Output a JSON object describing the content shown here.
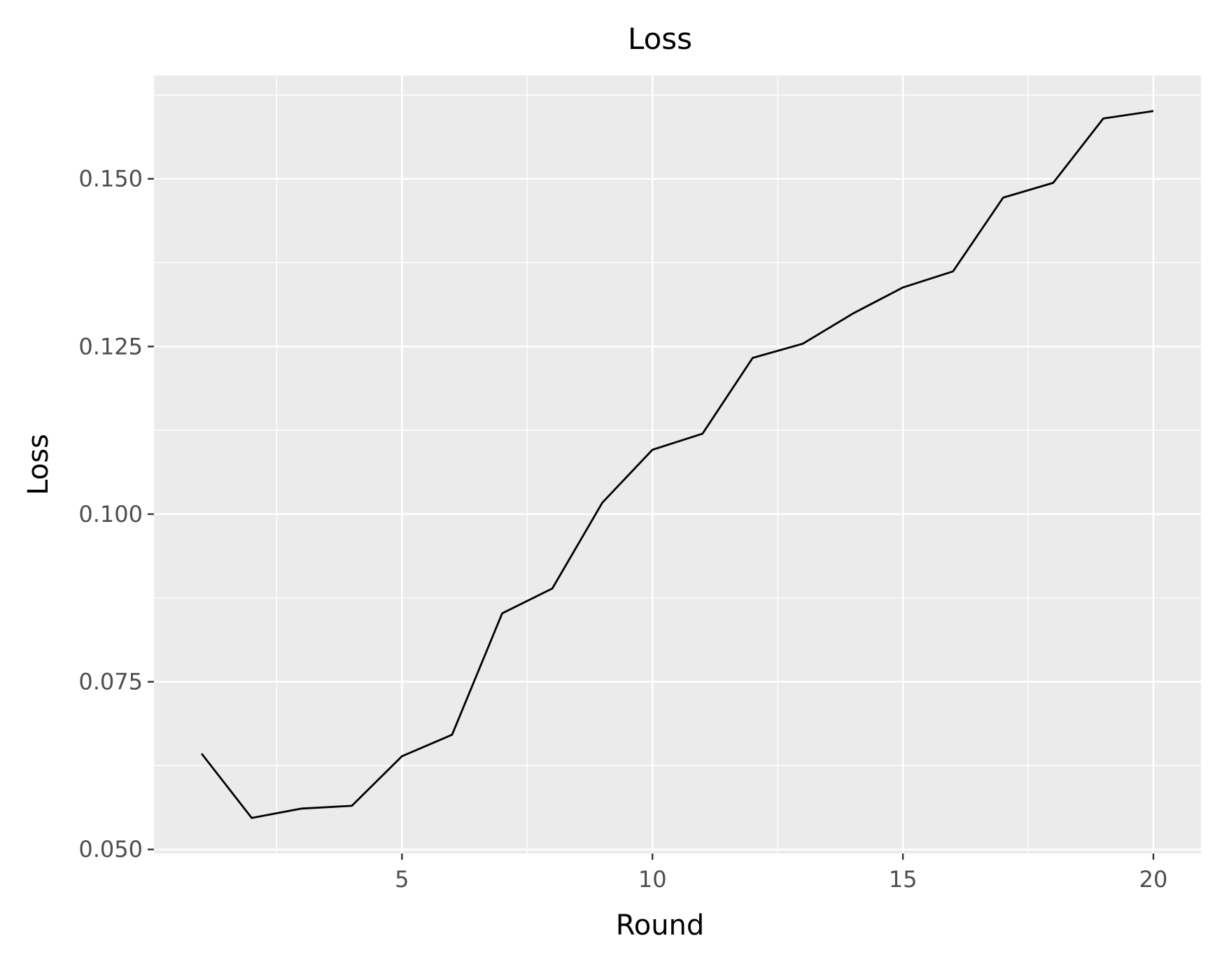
{
  "chart_data": {
    "type": "line",
    "title": "Loss",
    "xlabel": "Round",
    "ylabel": "Loss",
    "x": [
      1,
      2,
      3,
      4,
      5,
      6,
      7,
      8,
      9,
      10,
      11,
      12,
      13,
      14,
      15,
      16,
      17,
      18,
      19,
      20
    ],
    "series": [
      {
        "values": [
          0.0643,
          0.0547,
          0.0561,
          0.0565,
          0.0639,
          0.0671,
          0.0852,
          0.0889,
          0.1017,
          0.1096,
          0.112,
          0.1233,
          0.1254,
          0.1299,
          0.1338,
          0.1362,
          0.1472,
          0.1494,
          0.159,
          0.1601
        ],
        "color": "#000000"
      }
    ],
    "xticks": [
      5,
      10,
      15,
      20
    ],
    "xtick_labels": [
      "5",
      "10",
      "15",
      "20"
    ],
    "yticks": [
      0.05,
      0.075,
      0.1,
      0.125,
      0.15
    ],
    "ytick_labels": [
      "0.050",
      "0.075",
      "0.100",
      "0.125",
      "0.150"
    ],
    "xlim": [
      0.05,
      20.95
    ],
    "ylim": [
      0.0494,
      0.1654
    ],
    "grid": true,
    "legend": "none",
    "panel_background": "#ebebeb",
    "grid_color": "#ffffff"
  }
}
